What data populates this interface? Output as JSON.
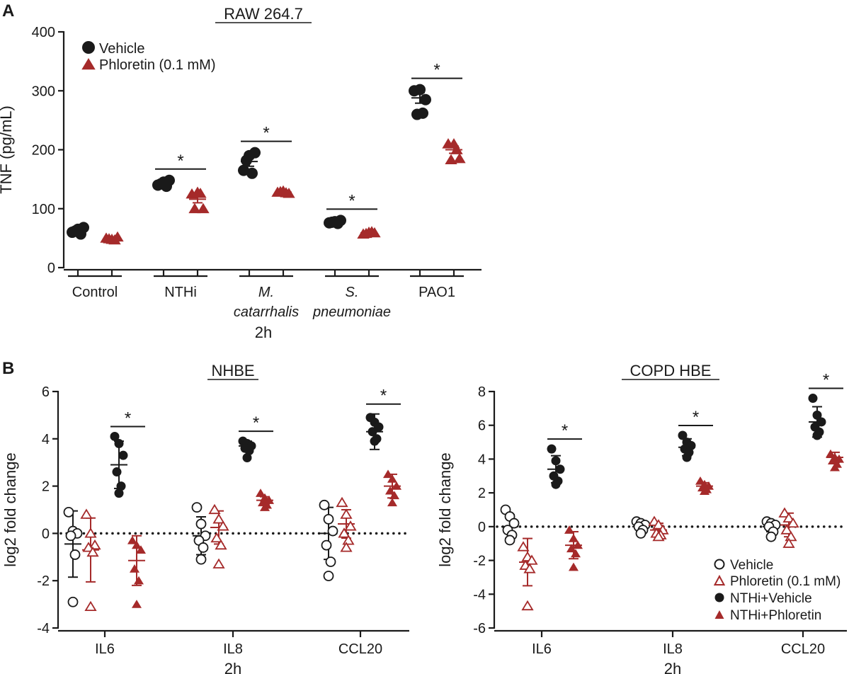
{
  "colors": {
    "vehicle": "#1a1a1a",
    "phloretin": "#a52a2a",
    "text": "#1a1a1a"
  },
  "panel_a": {
    "letter": "A",
    "time_label": "2h"
  },
  "panel_b": {
    "letter": "B",
    "legend": {
      "vehicle": "Vehicle",
      "phloretin": "Phloretin (0.1 mM)",
      "nthi_vehicle": "NTHi+Vehicle",
      "nthi_phloretin": "NTHi+Phloretin"
    }
  },
  "chart_data": [
    {
      "type": "scatter",
      "title": "RAW 264.7",
      "xlabel": "2h",
      "ylabel": "TNF (pg/mL)",
      "ylim": [
        0,
        400
      ],
      "yticks": [
        0,
        100,
        200,
        300,
        400
      ],
      "legend": [
        "Vehicle",
        "Phloretin (0.1 mM)"
      ],
      "categories": [
        {
          "lines": [
            "Control"
          ],
          "italic": false
        },
        {
          "lines": [
            "NTHi"
          ],
          "italic": false
        },
        {
          "lines": [
            "M.",
            "catarrhalis"
          ],
          "italic": true
        },
        {
          "lines": [
            "S.",
            "pneumoniae"
          ],
          "italic": true
        },
        {
          "lines": [
            "PAO1"
          ],
          "italic": false
        }
      ],
      "series": [
        {
          "name": "Vehicle",
          "marker": "circle",
          "filled": true,
          "points": [
            [
              60,
              65,
              68,
              62,
              57
            ],
            [
              140,
              145,
              148,
              142,
              138
            ],
            [
              165,
              190,
              195,
              182,
              160
            ],
            [
              76,
              78,
              80,
              77,
              75
            ],
            [
              300,
              302,
              285,
              260,
              262
            ]
          ],
          "mean": [
            62,
            143,
            180,
            77,
            288
          ],
          "err": [
            4,
            3,
            8,
            1,
            9
          ]
        },
        {
          "name": "Phloretin (0.1 mM)",
          "marker": "triangle",
          "filled": true,
          "points": [
            [
              50,
              48,
              52,
              49,
              47
            ],
            [
              125,
              128,
              100,
              100,
              126
            ],
            [
              128,
              130,
              126,
              129,
              127
            ],
            [
              57,
              60,
              59,
              58,
              61
            ],
            [
              210,
              210,
              185,
              183,
              200
            ]
          ],
          "mean": [
            49,
            116,
            128,
            59,
            200
          ],
          "err": [
            1,
            6,
            1,
            1,
            6
          ]
        }
      ],
      "significance": [
        "",
        "*",
        "*",
        "*",
        "*"
      ]
    },
    {
      "type": "scatter",
      "title": "NHBE",
      "xlabel": "2h",
      "ylabel": "log2 fold change",
      "ylim": [
        -4,
        6
      ],
      "yticks": [
        -4,
        -2,
        0,
        2,
        4,
        6
      ],
      "categories": [
        "IL6",
        "IL8",
        "CCL20"
      ],
      "series": [
        {
          "name": "Vehicle",
          "marker": "circle",
          "filled": false,
          "points": [
            [
              0.9,
              0.1,
              0,
              -0.1,
              -0.9,
              -2.9
            ],
            [
              1.1,
              0.4,
              -0.1,
              -0.3,
              -0.6,
              -1.1
            ],
            [
              1.2,
              0.6,
              0.1,
              -0.5,
              -1.2,
              -1.8
            ]
          ],
          "mean": [
            -0.45,
            -0.1,
            0
          ],
          "err": [
            1.4,
            0.8,
            1.1
          ]
        },
        {
          "name": "Phloretin (0.1 mM)",
          "marker": "triangle",
          "filled": false,
          "points": [
            [
              0.8,
              0,
              -0.5,
              -0.6,
              -0.8,
              -3.1
            ],
            [
              1,
              0.6,
              0.3,
              -0.2,
              -0.5,
              -1.3
            ],
            [
              1.3,
              0.8,
              0.3,
              0,
              -0.3,
              -0.6
            ]
          ],
          "mean": [
            -0.7,
            0.25,
            0.4
          ],
          "err": [
            1.35,
            0.7,
            0.6
          ]
        },
        {
          "name": "NTHi+Vehicle",
          "marker": "circle",
          "filled": true,
          "points": [
            [
              4.1,
              3.8,
              3.3,
              2.6,
              2,
              1.7
            ],
            [
              3.9,
              3.8,
              3.7,
              3.6,
              3.5,
              3.2
            ],
            [
              4.9,
              4.7,
              4.5,
              4.3,
              4,
              3.9
            ]
          ],
          "mean": [
            2.9,
            3.7,
            4.3
          ],
          "err": [
            1,
            0.2,
            0.75
          ]
        },
        {
          "name": "NTHi+Phloretin",
          "marker": "triangle",
          "filled": true,
          "points": [
            [
              -0.3,
              -0.5,
              -0.7,
              -1.5,
              -2,
              -3
            ],
            [
              1.7,
              1.5,
              1.4,
              1.3,
              1.2,
              1.1
            ],
            [
              2.5,
              2.3,
              2,
              1.8,
              1.6,
              1.3
            ]
          ],
          "mean": [
            -1.15,
            1.4,
            2
          ],
          "err": [
            1.05,
            0.15,
            0.5
          ]
        }
      ],
      "significance": [
        "*",
        "*",
        "*"
      ]
    },
    {
      "type": "scatter",
      "title": "COPD HBE",
      "xlabel": "2h",
      "ylabel": "log2 fold change",
      "ylim": [
        -6,
        8
      ],
      "yticks": [
        -6,
        -4,
        -2,
        0,
        2,
        4,
        6,
        8
      ],
      "categories": [
        "IL6",
        "IL8",
        "CCL20"
      ],
      "series": [
        {
          "name": "Vehicle",
          "marker": "circle",
          "filled": false,
          "points": [
            [
              1,
              0.6,
              0.2,
              -0.2,
              -0.5,
              -0.8
            ],
            [
              0.3,
              0.2,
              0.1,
              0,
              -0.2,
              -0.4
            ],
            [
              0.3,
              0.2,
              0.1,
              0,
              -0.3,
              -0.6
            ]
          ],
          "mean": [
            0,
            0,
            0
          ],
          "err": [
            0.7,
            0.25,
            0.3
          ]
        },
        {
          "name": "Phloretin (0.1 mM)",
          "marker": "triangle",
          "filled": false,
          "points": [
            [
              -1.2,
              -1.8,
              -2,
              -2.3,
              -2.5,
              -4.7
            ],
            [
              0.3,
              0.1,
              -0.2,
              -0.4,
              -0.5,
              -0.6
            ],
            [
              0.8,
              0.5,
              0.2,
              -0.2,
              -0.6,
              -1
            ]
          ],
          "mean": [
            -2.1,
            -0.2,
            0.1
          ],
          "err": [
            1.4,
            0.4,
            0.7
          ]
        },
        {
          "name": "NTHi+Vehicle",
          "marker": "circle",
          "filled": true,
          "points": [
            [
              4.6,
              3.9,
              3.4,
              3,
              2.7,
              2.5
            ],
            [
              5.4,
              5,
              4.8,
              4.6,
              4.4,
              4.1
            ],
            [
              7.6,
              6.6,
              6.2,
              5.9,
              5.6,
              5.4
            ]
          ],
          "mean": [
            3.4,
            4.7,
            6.2
          ],
          "err": [
            0.8,
            0.5,
            0.9
          ]
        },
        {
          "name": "NTHi+Phloretin",
          "marker": "triangle",
          "filled": true,
          "points": [
            [
              -0.2,
              -0.7,
              -1.1,
              -1.3,
              -1.6,
              -2.4
            ],
            [
              2.7,
              2.5,
              2.4,
              2.3,
              2.2,
              2.1
            ],
            [
              4.3,
              4.1,
              4,
              3.9,
              3.7,
              3.5
            ]
          ],
          "mean": [
            -1.1,
            2.4,
            4.1
          ],
          "err": [
            0.8,
            0.2,
            0.3
          ]
        }
      ],
      "significance": [
        "*",
        "*",
        "*"
      ]
    }
  ]
}
